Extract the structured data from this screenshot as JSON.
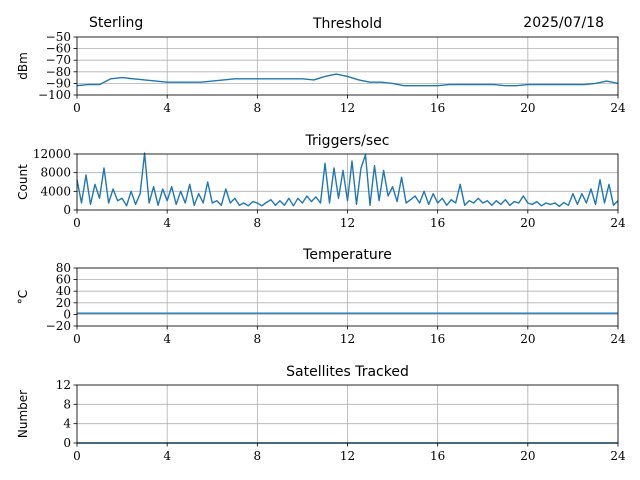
{
  "header": {
    "site": "Sterling",
    "date": "2025/07/18"
  },
  "chart_data": [
    {
      "type": "line",
      "title": "Threshold",
      "ylabel": "dBm",
      "xlim": [
        0,
        24
      ],
      "ylim": [
        -100,
        -50
      ],
      "xticks": [
        0,
        4,
        8,
        12,
        16,
        20,
        24
      ],
      "yticks": [
        -100,
        -90,
        -80,
        -70,
        -60,
        -50
      ],
      "ytick_labels": [
        "−100",
        "−90",
        "−80",
        "−70",
        "−60",
        "−50"
      ],
      "grid": true,
      "color": "#1f77b4",
      "x": [
        0,
        0.5,
        1,
        1.5,
        2,
        2.5,
        3,
        3.5,
        4,
        4.5,
        5,
        5.5,
        6,
        6.5,
        7,
        7.5,
        8,
        8.5,
        9,
        9.5,
        10,
        10.5,
        11,
        11.5,
        12,
        12.5,
        13,
        13.5,
        14,
        14.5,
        15,
        15.5,
        16,
        16.5,
        17,
        17.5,
        18,
        18.5,
        19,
        19.5,
        20,
        20.5,
        21,
        21.5,
        22,
        22.5,
        23,
        23.5,
        24
      ],
      "values": [
        -92,
        -91,
        -91,
        -86,
        -85,
        -86,
        -87,
        -88,
        -89,
        -89,
        -89,
        -89,
        -88,
        -87,
        -86,
        -86,
        -86,
        -86,
        -86,
        -86,
        -86,
        -87,
        -84,
        -82,
        -84,
        -87,
        -89,
        -89,
        -90,
        -92,
        -92,
        -92,
        -92,
        -91,
        -91,
        -91,
        -91,
        -91,
        -92,
        -92,
        -91,
        -91,
        -91,
        -91,
        -91,
        -91,
        -90,
        -88,
        -90
      ]
    },
    {
      "type": "line",
      "title": "Triggers/sec",
      "ylabel": "Count",
      "xlim": [
        0,
        24
      ],
      "ylim": [
        0,
        12000
      ],
      "xticks": [
        0,
        4,
        8,
        12,
        16,
        20,
        24
      ],
      "yticks": [
        0,
        4000,
        8000,
        12000
      ],
      "grid": true,
      "color": "#1f77b4",
      "x": [
        0,
        0.2,
        0.4,
        0.6,
        0.8,
        1,
        1.2,
        1.4,
        1.6,
        1.8,
        2,
        2.2,
        2.4,
        2.6,
        2.8,
        3,
        3.2,
        3.4,
        3.6,
        3.8,
        4,
        4.2,
        4.4,
        4.6,
        4.8,
        5,
        5.2,
        5.4,
        5.6,
        5.8,
        6,
        6.2,
        6.4,
        6.6,
        6.8,
        7,
        7.2,
        7.4,
        7.6,
        7.8,
        8,
        8.2,
        8.4,
        8.6,
        8.8,
        9,
        9.2,
        9.4,
        9.6,
        9.8,
        10,
        10.2,
        10.4,
        10.6,
        10.8,
        11,
        11.2,
        11.4,
        11.6,
        11.8,
        12,
        12.2,
        12.4,
        12.6,
        12.8,
        13,
        13.2,
        13.4,
        13.6,
        13.8,
        14,
        14.2,
        14.4,
        14.6,
        14.8,
        15,
        15.2,
        15.4,
        15.6,
        15.8,
        16,
        16.2,
        16.4,
        16.6,
        16.8,
        17,
        17.2,
        17.4,
        17.6,
        17.8,
        18,
        18.2,
        18.4,
        18.6,
        18.8,
        19,
        19.2,
        19.4,
        19.6,
        19.8,
        20,
        20.2,
        20.4,
        20.6,
        20.8,
        21,
        21.2,
        21.4,
        21.6,
        21.8,
        22,
        22.2,
        22.4,
        22.6,
        22.8,
        23,
        23.2,
        23.4,
        23.6,
        23.8,
        24
      ],
      "values": [
        6500,
        1500,
        7500,
        1200,
        5500,
        2500,
        9000,
        1500,
        4500,
        2000,
        2500,
        900,
        4000,
        1200,
        3500,
        12200,
        1500,
        5000,
        1000,
        4500,
        2000,
        5000,
        1200,
        4000,
        1500,
        5500,
        1000,
        3500,
        1500,
        6000,
        1500,
        2000,
        1000,
        4500,
        1500,
        2500,
        1000,
        1500,
        900,
        1800,
        1500,
        900,
        1600,
        2200,
        1000,
        2000,
        1000,
        2500,
        900,
        2500,
        1500,
        3000,
        1800,
        2800,
        1500,
        10000,
        1500,
        9000,
        2500,
        8500,
        2000,
        10500,
        1200,
        9000,
        11800,
        1000,
        9500,
        2000,
        8500,
        3000,
        5000,
        1800,
        7000,
        1500,
        2200,
        3000,
        1500,
        4000,
        1200,
        3500,
        1500,
        2500,
        1000,
        2200,
        1500,
        5500,
        1000,
        2000,
        1500,
        2500,
        1500,
        2000,
        1000,
        2000,
        1200,
        2200,
        1000,
        1800,
        1500,
        3000,
        1500,
        1200,
        1800,
        900,
        1500,
        1200,
        1500,
        800,
        1600,
        1000,
        3500,
        1200,
        3500,
        1500,
        4500,
        1200,
        6500,
        1500,
        5500,
        1000,
        2000
      ]
    },
    {
      "type": "line",
      "title": "Temperature",
      "ylabel": "°C",
      "xlim": [
        0,
        24
      ],
      "ylim": [
        -20,
        80
      ],
      "xticks": [
        0,
        4,
        8,
        12,
        16,
        20,
        24
      ],
      "yticks": [
        -20,
        0,
        20,
        40,
        60,
        80
      ],
      "ytick_labels": [
        "−20",
        "0",
        "20",
        "40",
        "60",
        "80"
      ],
      "grid": true,
      "color": "#1f77b4",
      "x": [
        0,
        24
      ],
      "values": [
        2,
        2
      ]
    },
    {
      "type": "line",
      "title": "Satellites Tracked",
      "ylabel": "Number",
      "xlim": [
        0,
        24
      ],
      "ylim": [
        0,
        12
      ],
      "xticks": [
        0,
        4,
        8,
        12,
        16,
        20,
        24
      ],
      "yticks": [
        0,
        4,
        8,
        12
      ],
      "grid": true,
      "color": "#1f77b4",
      "x": [
        0,
        24
      ],
      "values": [
        0,
        0
      ]
    }
  ]
}
